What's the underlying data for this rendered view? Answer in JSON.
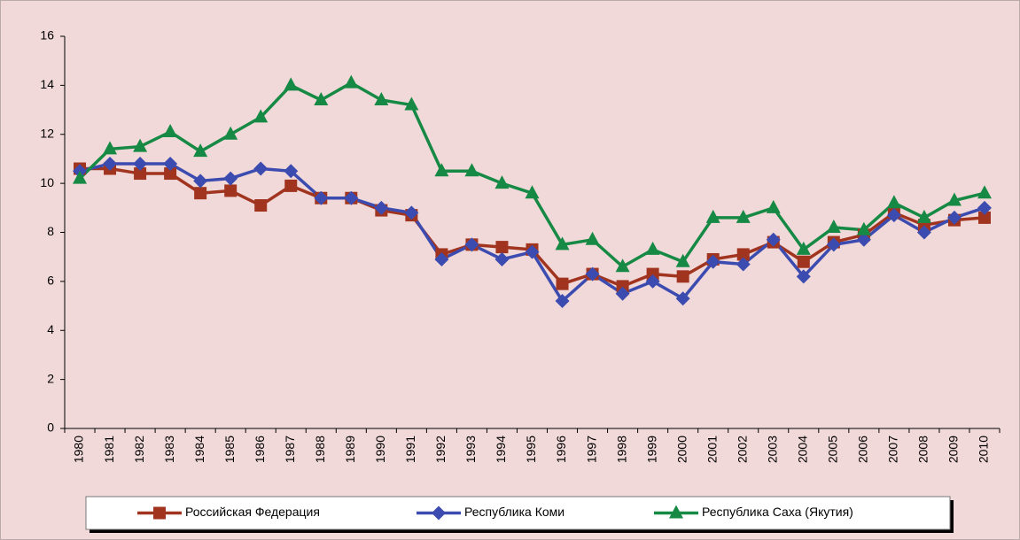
{
  "chart_data": {
    "type": "line",
    "categories": [
      "1980",
      "1981",
      "1982",
      "1983",
      "1984",
      "1985",
      "1986",
      "1987",
      "1988",
      "1989",
      "1990",
      "1991",
      "1992",
      "1993",
      "1994",
      "1995",
      "1996",
      "1997",
      "1998",
      "1999",
      "2000",
      "2001",
      "2002",
      "2003",
      "2004",
      "2005",
      "2006",
      "2007",
      "2008",
      "2009",
      "2010"
    ],
    "series": [
      {
        "name": "Российская Федерация",
        "color": "#a0341f",
        "marker": "square",
        "values": [
          10.6,
          10.6,
          10.4,
          10.4,
          9.6,
          9.7,
          9.1,
          9.9,
          9.4,
          9.4,
          8.9,
          8.7,
          7.1,
          7.5,
          7.4,
          7.3,
          5.9,
          6.3,
          5.8,
          6.3,
          6.2,
          6.9,
          7.1,
          7.6,
          6.8,
          7.6,
          7.9,
          8.8,
          8.3,
          8.5,
          8.6
        ]
      },
      {
        "name": "Республика Коми",
        "color": "#3c4bb0",
        "marker": "diamond",
        "values": [
          10.5,
          10.8,
          10.8,
          10.8,
          10.1,
          10.2,
          10.6,
          10.5,
          9.4,
          9.4,
          9.0,
          8.8,
          6.9,
          7.5,
          6.9,
          7.2,
          5.2,
          6.3,
          5.5,
          6.0,
          5.3,
          6.8,
          6.7,
          7.7,
          6.2,
          7.5,
          7.7,
          8.7,
          8.0,
          8.6,
          9.0
        ]
      },
      {
        "name": "Республика Саха (Якутия)",
        "color": "#168a45",
        "marker": "triangle",
        "values": [
          10.2,
          11.4,
          11.5,
          12.1,
          11.3,
          12.0,
          12.7,
          14.0,
          13.4,
          14.1,
          13.4,
          13.2,
          10.5,
          10.5,
          10.0,
          9.6,
          7.5,
          7.7,
          6.6,
          7.3,
          6.8,
          8.6,
          8.6,
          9.0,
          7.3,
          8.2,
          8.1,
          9.2,
          8.6,
          9.3,
          9.6
        ]
      }
    ],
    "ylim": [
      0,
      16
    ],
    "yticks": [
      0,
      2,
      4,
      6,
      8,
      10,
      12,
      14,
      16
    ],
    "legend": "bottom"
  }
}
